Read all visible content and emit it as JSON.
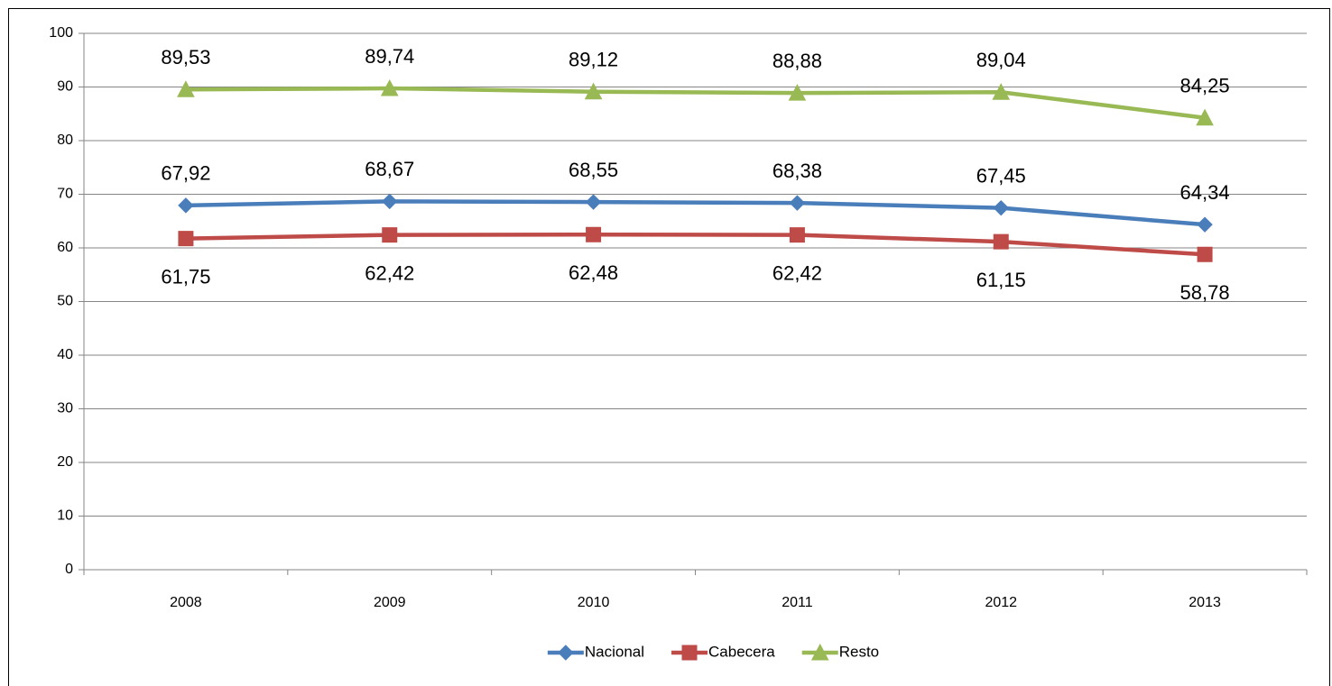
{
  "chart_data": {
    "type": "line",
    "categories": [
      "2008",
      "2009",
      "2010",
      "2011",
      "2012",
      "2013"
    ],
    "series": [
      {
        "name": "Nacional",
        "color": "#4a7ebb",
        "marker": "diamond",
        "label_position": "above",
        "values": [
          67.92,
          68.67,
          68.55,
          68.38,
          67.45,
          64.34
        ],
        "value_labels": [
          "67,92",
          "68,67",
          "68,55",
          "68,38",
          "67,45",
          "64,34"
        ]
      },
      {
        "name": "Cabecera",
        "color": "#be4b48",
        "marker": "square",
        "label_position": "below",
        "values": [
          61.75,
          62.42,
          62.48,
          62.42,
          61.15,
          58.78
        ],
        "value_labels": [
          "61,75",
          "62,42",
          "62,48",
          "62,42",
          "61,15",
          "58,78"
        ]
      },
      {
        "name": "Resto",
        "color": "#98b954",
        "marker": "triangle",
        "label_position": "above",
        "values": [
          89.53,
          89.74,
          89.12,
          88.88,
          89.04,
          84.25
        ],
        "value_labels": [
          "89,53",
          "89,74",
          "89,12",
          "88,88",
          "89,04",
          "84,25"
        ]
      }
    ],
    "ylim": [
      0,
      100
    ],
    "yticks": [
      0,
      10,
      20,
      30,
      40,
      50,
      60,
      70,
      80,
      90,
      100
    ],
    "grid": true,
    "legend": "bottom"
  }
}
